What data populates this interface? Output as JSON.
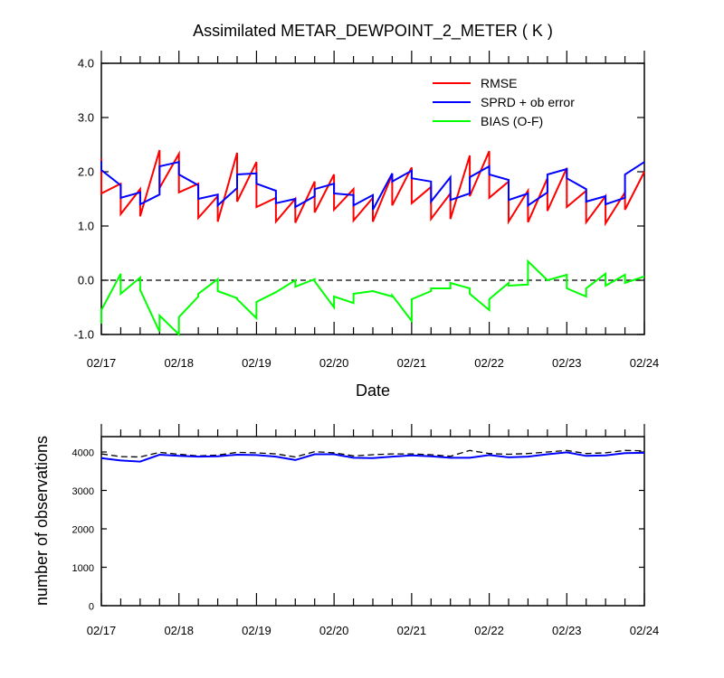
{
  "colors": {
    "rmse": "#ff0000",
    "spread": "#0000ff",
    "bias": "#00ff00",
    "obs_assim": "#0000ff",
    "obs_possible": "#000000"
  },
  "chart_data": [
    {
      "type": "line",
      "title": "Assimilated METAR_DEWPOINT_2_METER ( K )",
      "xlabel": "Date",
      "ylabel": "",
      "xlim": [
        "02/17 00:00",
        "02/24 00:00"
      ],
      "ylim": [
        -1.0,
        4.0
      ],
      "x_tick_labels": [
        "02/17",
        "02/18",
        "02/19",
        "02/20",
        "02/21",
        "02/22",
        "02/23",
        "02/24"
      ],
      "y_tick_labels": [
        "-1.0",
        "0.0",
        "1.0",
        "2.0",
        "3.0",
        "4.0"
      ],
      "y_ticks": [
        -1,
        0,
        1,
        2,
        3,
        4
      ],
      "reference_line": {
        "y": 0.0,
        "style": "dashed"
      },
      "legend": {
        "placement": "top-right"
      },
      "grid": false,
      "x_unit": "days since 02/17 00:00",
      "series": [
        {
          "name": "RMSE",
          "color_key": "rmse",
          "x": [
            0.0,
            0.0,
            0.25,
            0.25,
            0.5,
            0.5,
            0.75,
            0.75,
            1.0,
            1.0,
            1.25,
            1.25,
            1.5,
            1.5,
            1.75,
            1.75,
            2.0,
            2.0,
            2.25,
            2.25,
            2.5,
            2.5,
            2.75,
            2.75,
            3.0,
            3.0,
            3.25,
            3.25,
            3.5,
            3.5,
            3.75,
            3.75,
            4.0,
            4.0,
            4.25,
            4.25,
            4.5,
            4.5,
            4.75,
            4.75,
            5.0,
            5.0,
            5.25,
            5.25,
            5.5,
            5.5,
            5.75,
            5.75,
            6.0,
            6.0,
            6.25,
            6.25,
            6.5,
            6.5,
            6.75,
            6.75,
            7.0
          ],
          "y": [
            2.25,
            1.6,
            1.78,
            1.22,
            1.68,
            1.18,
            2.4,
            1.7,
            2.33,
            1.62,
            1.78,
            1.15,
            1.55,
            1.08,
            2.35,
            1.45,
            2.18,
            1.35,
            1.52,
            1.08,
            1.5,
            1.06,
            1.82,
            1.25,
            1.95,
            1.3,
            1.68,
            1.1,
            1.52,
            1.08,
            1.95,
            1.38,
            2.08,
            1.42,
            1.72,
            1.13,
            1.6,
            1.13,
            2.3,
            1.55,
            2.38,
            1.52,
            1.82,
            1.08,
            1.65,
            1.07,
            1.88,
            1.28,
            2.07,
            1.35,
            1.65,
            1.07,
            1.55,
            1.05,
            1.62,
            1.3,
            2.0
          ]
        },
        {
          "name": "SPRD + ob error",
          "color_key": "spread",
          "x": [
            0.0,
            0.0,
            0.25,
            0.25,
            0.5,
            0.5,
            0.75,
            0.75,
            1.0,
            1.0,
            1.25,
            1.25,
            1.5,
            1.5,
            1.75,
            1.75,
            2.0,
            2.0,
            2.25,
            2.25,
            2.5,
            2.5,
            2.75,
            2.75,
            3.0,
            3.0,
            3.25,
            3.25,
            3.5,
            3.5,
            3.75,
            3.75,
            4.0,
            4.0,
            4.25,
            4.25,
            4.5,
            4.5,
            4.75,
            4.75,
            5.0,
            5.0,
            5.25,
            5.25,
            5.5,
            5.5,
            5.75,
            5.75,
            6.0,
            6.0,
            6.25,
            6.25,
            6.5,
            6.5,
            6.75,
            6.75,
            7.0
          ],
          "y": [
            2.2,
            2.03,
            1.75,
            1.52,
            1.62,
            1.4,
            1.58,
            2.1,
            2.18,
            1.95,
            1.75,
            1.5,
            1.58,
            1.38,
            1.7,
            1.95,
            1.97,
            1.78,
            1.65,
            1.42,
            1.5,
            1.35,
            1.55,
            1.68,
            1.78,
            1.6,
            1.57,
            1.38,
            1.57,
            1.3,
            1.97,
            1.82,
            2.02,
            1.88,
            1.82,
            1.45,
            1.9,
            1.48,
            1.6,
            1.9,
            2.1,
            1.95,
            1.85,
            1.48,
            1.6,
            1.38,
            1.62,
            1.95,
            2.05,
            1.88,
            1.68,
            1.45,
            1.55,
            1.4,
            1.52,
            1.95,
            2.18
          ]
        },
        {
          "name": "BIAS (O-F)",
          "color_key": "bias",
          "x": [
            0.0,
            0.0,
            0.25,
            0.25,
            0.5,
            0.5,
            0.75,
            0.75,
            1.0,
            1.0,
            1.25,
            1.25,
            1.5,
            1.5,
            1.75,
            1.75,
            2.0,
            2.0,
            2.25,
            2.25,
            2.5,
            2.5,
            2.75,
            2.75,
            3.0,
            3.0,
            3.25,
            3.25,
            3.5,
            3.5,
            3.75,
            3.75,
            4.0,
            4.0,
            4.25,
            4.25,
            4.5,
            4.5,
            4.75,
            4.75,
            5.0,
            5.0,
            5.25,
            5.25,
            5.5,
            5.5,
            5.75,
            5.75,
            6.0,
            6.0,
            6.25,
            6.25,
            6.5,
            6.5,
            6.75,
            6.75,
            7.0
          ],
          "y": [
            -0.8,
            -0.55,
            0.12,
            -0.25,
            0.05,
            -0.18,
            -0.95,
            -0.65,
            -1.0,
            -0.68,
            -0.3,
            -0.25,
            0.02,
            -0.2,
            -0.33,
            -0.35,
            -0.7,
            -0.4,
            -0.22,
            -0.22,
            0.0,
            -0.12,
            0.02,
            -0.02,
            -0.5,
            -0.3,
            -0.42,
            -0.25,
            -0.2,
            -0.2,
            -0.3,
            -0.28,
            -0.75,
            -0.35,
            -0.2,
            -0.15,
            -0.15,
            -0.05,
            -0.15,
            -0.25,
            -0.55,
            -0.35,
            -0.05,
            -0.1,
            -0.08,
            0.35,
            0.0,
            0.0,
            0.1,
            -0.15,
            -0.3,
            -0.15,
            0.12,
            -0.1,
            0.1,
            -0.05,
            0.07
          ]
        }
      ]
    },
    {
      "type": "line",
      "title": "",
      "xlabel": "",
      "ylabel": "number of observations",
      "xlim": [
        "02/17 00:00",
        "02/24 00:00"
      ],
      "ylim": [
        0,
        4400
      ],
      "x_tick_labels": [
        "02/17",
        "02/18",
        "02/19",
        "02/20",
        "02/21",
        "02/22",
        "02/23",
        "02/24"
      ],
      "y_tick_labels": [
        "0",
        "1000",
        "2000",
        "3000",
        "4000"
      ],
      "y_ticks": [
        0,
        1000,
        2000,
        3000,
        4000
      ],
      "grid": false,
      "x_unit": "days since 02/17 00:00",
      "series": [
        {
          "color_key": "obs_possible",
          "style": "dashed",
          "x": [
            0.0,
            0.25,
            0.5,
            0.75,
            1.0,
            1.25,
            1.5,
            1.75,
            2.0,
            2.25,
            2.5,
            2.75,
            3.0,
            3.25,
            3.5,
            3.75,
            4.0,
            4.25,
            4.5,
            4.75,
            5.0,
            5.25,
            5.5,
            5.75,
            6.0,
            6.25,
            6.5,
            6.75,
            7.0
          ],
          "y": [
            3950,
            3880,
            3870,
            3990,
            3940,
            3900,
            3920,
            3990,
            3980,
            3950,
            3870,
            4010,
            3980,
            3900,
            3930,
            3950,
            3950,
            3930,
            3890,
            4040,
            3960,
            3940,
            3960,
            4000,
            4040,
            3960,
            3980,
            4040,
            4030
          ]
        },
        {
          "color_key": "obs_assim",
          "style": "solid",
          "x": [
            0.0,
            0.25,
            0.5,
            0.75,
            1.0,
            1.25,
            1.5,
            1.75,
            2.0,
            2.25,
            2.5,
            2.75,
            3.0,
            3.25,
            3.5,
            3.75,
            4.0,
            4.25,
            4.5,
            4.75,
            5.0,
            5.25,
            5.5,
            5.75,
            6.0,
            6.25,
            6.5,
            6.75,
            7.0
          ],
          "y": [
            3840,
            3780,
            3750,
            3930,
            3900,
            3880,
            3890,
            3930,
            3920,
            3880,
            3790,
            3940,
            3940,
            3850,
            3840,
            3880,
            3910,
            3890,
            3850,
            3850,
            3920,
            3860,
            3880,
            3940,
            3990,
            3900,
            3910,
            3970,
            3980
          ]
        }
      ]
    }
  ]
}
